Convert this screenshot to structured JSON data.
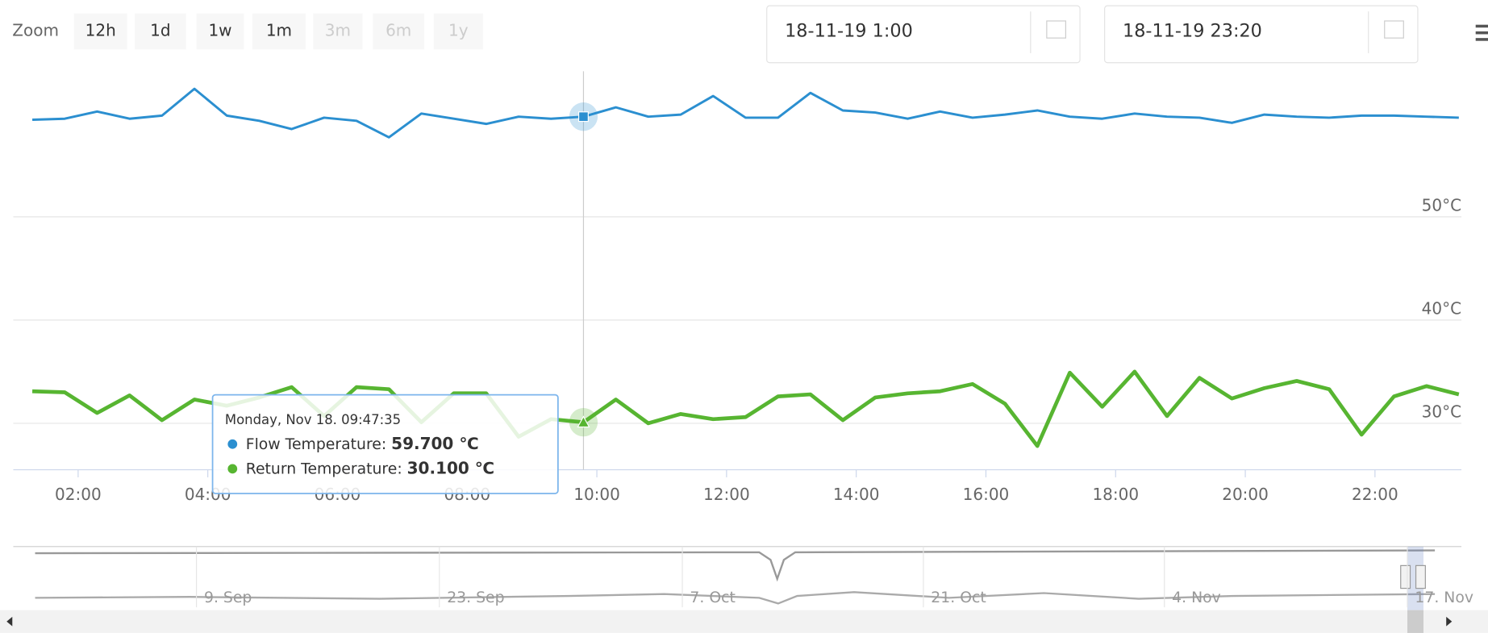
{
  "zoom": {
    "label": "Zoom",
    "buttons": [
      "12h",
      "1d",
      "1w",
      "1m",
      "3m",
      "6m",
      "1y"
    ],
    "disabled": [
      false,
      false,
      false,
      false,
      true,
      true,
      true
    ]
  },
  "date_range": {
    "from": "18-11-19 1:00",
    "to": "18-11-19 23:20"
  },
  "tooltip": {
    "header": "Monday, Nov 18. 09:47:35",
    "point_index": 17,
    "rows": [
      {
        "label": "Flow Temperature: ",
        "value": "59.700 ℃"
      },
      {
        "label": "Return Temperature: ",
        "value": "30.100 ℃"
      }
    ]
  },
  "navigator": {
    "labels": [
      "9. Sep",
      "23. Sep",
      "7. Oct",
      "21. Oct",
      "4. Nov",
      "17. Nov"
    ]
  },
  "chart_data": {
    "type": "line",
    "x": [
      77.6,
      107.6,
      137.6,
      167.6,
      197.6,
      227.6,
      257.6,
      287.6,
      317.6,
      347.6,
      377.6,
      407.6,
      437.6,
      467.6,
      497.6,
      527.6,
      557.6,
      587.6,
      617.6,
      647.6,
      677.6,
      707.6,
      737.6,
      767.6,
      797.6,
      827.6,
      857.6,
      887.6,
      917.6,
      947.6,
      977.6,
      1007.6,
      1037.6,
      1067.6,
      1097.6,
      1127.6,
      1157.6,
      1187.6,
      1217.6,
      1247.6,
      1277.6,
      1307.6,
      1337.6,
      1367.6,
      1397.6
    ],
    "series": [
      {
        "name": "Flow Temperature",
        "color": "#2b8fd0",
        "marker": "square",
        "values": [
          59.4,
          59.5,
          60.2,
          59.5,
          59.8,
          62.4,
          59.8,
          59.3,
          58.5,
          59.6,
          59.3,
          57.7,
          60.0,
          59.5,
          59.0,
          59.7,
          59.5,
          59.7,
          60.6,
          59.7,
          59.9,
          61.7,
          59.6,
          59.6,
          62.0,
          60.3,
          60.1,
          59.5,
          60.2,
          59.6,
          59.9,
          60.3,
          59.7,
          59.5,
          60.0,
          59.7,
          59.6,
          59.1,
          59.9,
          59.7,
          59.6,
          59.8,
          59.8,
          59.7,
          59.6
        ]
      },
      {
        "name": "Return Temperature",
        "color": "#57b531",
        "marker": "triangle",
        "values": [
          33.1,
          33.0,
          31.0,
          32.7,
          30.3,
          32.3,
          31.7,
          32.5,
          33.5,
          30.7,
          33.5,
          33.3,
          30.1,
          32.9,
          32.9,
          28.7,
          30.4,
          30.1,
          32.3,
          30.0,
          30.9,
          30.4,
          30.6,
          32.6,
          32.8,
          30.3,
          32.5,
          32.9,
          33.1,
          33.8,
          31.9,
          27.8,
          34.9,
          31.6,
          35.0,
          30.7,
          34.4,
          32.4,
          33.4,
          34.1,
          33.3,
          28.9,
          32.6,
          33.6,
          32.8
        ]
      }
    ],
    "xlim": [
      60,
      1400
    ],
    "xticks": [
      {
        "value": 120,
        "label": "02:00"
      },
      {
        "value": 240,
        "label": "04:00"
      },
      {
        "value": 360,
        "label": "06:00"
      },
      {
        "value": 480,
        "label": "08:00"
      },
      {
        "value": 600,
        "label": "10:00"
      },
      {
        "value": 720,
        "label": "12:00"
      },
      {
        "value": 840,
        "label": "14:00"
      },
      {
        "value": 960,
        "label": "16:00"
      },
      {
        "value": 1080,
        "label": "18:00"
      },
      {
        "value": 1200,
        "label": "20:00"
      },
      {
        "value": 1320,
        "label": "22:00"
      }
    ],
    "ylim": [
      25.5,
      64.1
    ],
    "yticks": [
      {
        "value": 30,
        "label": "30°C"
      },
      {
        "value": 40,
        "label": "40°C"
      },
      {
        "value": 50,
        "label": "50°C"
      }
    ],
    "grid": true
  }
}
